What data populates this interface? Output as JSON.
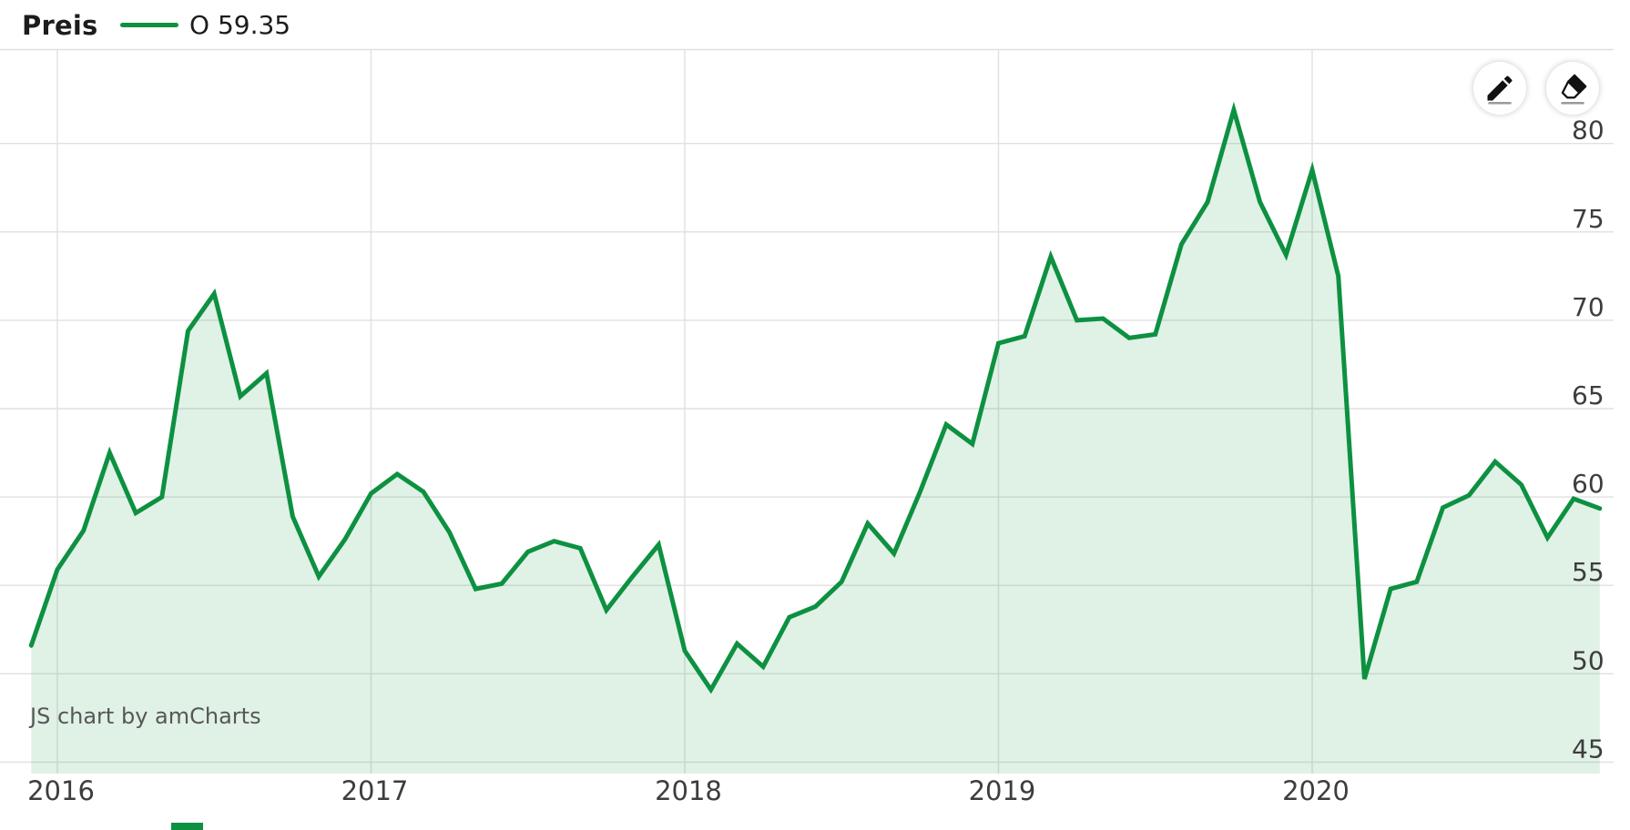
{
  "header": {
    "title": "Preis",
    "legend_label": "O 59.35"
  },
  "toolbar": {
    "icons": [
      "pencil",
      "eraser"
    ]
  },
  "watermark": "JS chart by amCharts",
  "colors": {
    "line": "#0d9141",
    "fill": "rgba(13,145,65,0.13)",
    "grid": "#e0e0e0",
    "axis_text": "#3d3d3d",
    "title_text": "#1c1c1c",
    "watermark_text": "#575757",
    "icon_underline": "#9a9a9a"
  },
  "chart_data": {
    "type": "area",
    "title": "Preis",
    "series_name": "O",
    "legend": "O 59.35",
    "last_value": 59.35,
    "x": [
      "2015-12",
      "2016-01",
      "2016-02",
      "2016-03",
      "2016-04",
      "2016-05",
      "2016-06",
      "2016-07",
      "2016-08",
      "2016-09",
      "2016-10",
      "2016-11",
      "2016-12",
      "2017-01",
      "2017-02",
      "2017-03",
      "2017-04",
      "2017-05",
      "2017-06",
      "2017-07",
      "2017-08",
      "2017-09",
      "2017-10",
      "2017-11",
      "2017-12",
      "2018-01",
      "2018-02",
      "2018-03",
      "2018-04",
      "2018-05",
      "2018-06",
      "2018-07",
      "2018-08",
      "2018-09",
      "2018-10",
      "2018-11",
      "2018-12",
      "2019-01",
      "2019-02",
      "2019-03",
      "2019-04",
      "2019-05",
      "2019-06",
      "2019-07",
      "2019-08",
      "2019-09",
      "2019-10",
      "2019-11",
      "2019-12",
      "2020-01",
      "2020-02",
      "2020-03",
      "2020-04",
      "2020-05",
      "2020-06",
      "2020-07",
      "2020-08",
      "2020-09",
      "2020-10",
      "2020-11",
      "2020-12"
    ],
    "values": [
      51.6,
      55.9,
      58.1,
      62.5,
      59.1,
      60.0,
      69.4,
      71.5,
      65.7,
      67.0,
      58.9,
      55.5,
      57.6,
      60.2,
      61.3,
      60.3,
      58.0,
      54.8,
      55.1,
      56.9,
      57.5,
      57.1,
      53.6,
      55.5,
      57.3,
      51.3,
      49.1,
      51.7,
      50.4,
      53.2,
      53.8,
      55.2,
      58.5,
      56.8,
      60.3,
      64.1,
      63.0,
      68.7,
      69.1,
      73.6,
      70.0,
      70.1,
      69.0,
      69.2,
      74.3,
      76.7,
      81.9,
      76.7,
      73.7,
      78.5,
      72.5,
      49.7,
      54.8,
      55.2,
      59.4,
      60.1,
      62.0,
      60.7,
      57.7,
      59.9,
      59.35
    ],
    "x_tick_labels": [
      "2016",
      "2017",
      "2018",
      "2019",
      "2020"
    ],
    "y_ticks": [
      45,
      50,
      55,
      60,
      65,
      70,
      75,
      80
    ],
    "ylim": [
      44.3,
      85.4
    ],
    "grid": true,
    "y_axis_position": "right",
    "legend_position": "top-left"
  }
}
